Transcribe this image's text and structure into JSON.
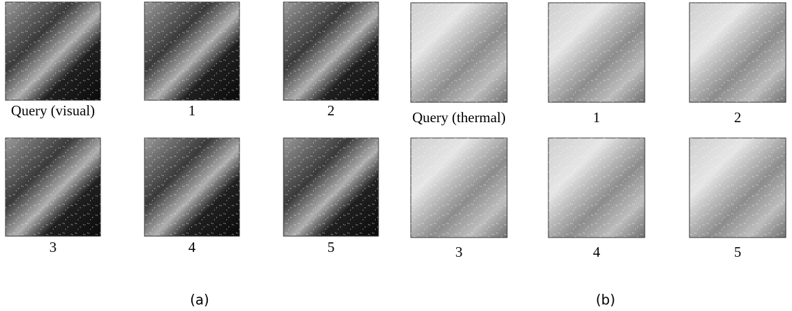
{
  "panels": [
    {
      "label": "(a)",
      "images": [
        {
          "caption": "Query (visual)"
        },
        {
          "caption": "1"
        },
        {
          "caption": "2"
        },
        {
          "caption": "3"
        },
        {
          "caption": "4"
        },
        {
          "caption": "5"
        }
      ]
    },
    {
      "label": "(b)",
      "images": [
        {
          "caption": "Query (thermal)"
        },
        {
          "caption": "1"
        },
        {
          "caption": "2"
        },
        {
          "caption": "3"
        },
        {
          "caption": "4"
        },
        {
          "caption": "5"
        }
      ]
    }
  ]
}
